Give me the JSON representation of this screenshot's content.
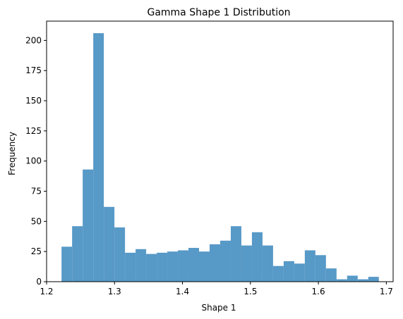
{
  "chart_data": {
    "type": "bar",
    "title": "Gamma Shape 1 Distribution",
    "xlabel": "Shape 1",
    "ylabel": "Frequency",
    "xlim": [
      1.2,
      1.71
    ],
    "ylim": [
      0,
      216
    ],
    "x_ticks": [
      1.2,
      1.3,
      1.4,
      1.5,
      1.6,
      1.7
    ],
    "y_ticks": [
      0,
      25,
      50,
      75,
      100,
      125,
      150,
      175,
      200
    ],
    "bin_start": 1.222,
    "bin_end": 1.689,
    "bins": 30,
    "values": [
      29,
      46,
      93,
      206,
      62,
      45,
      24,
      27,
      23,
      24,
      25,
      26,
      28,
      25,
      31,
      34,
      46,
      30,
      41,
      30,
      13,
      17,
      15,
      26,
      22,
      11,
      2,
      5,
      2,
      4
    ],
    "bar_color": "#5799c7",
    "grid": false
  }
}
